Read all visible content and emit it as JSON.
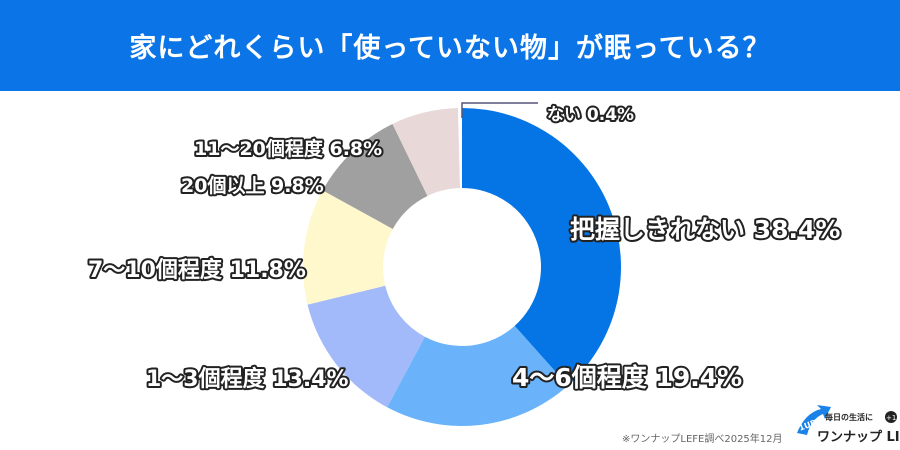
{
  "header": {
    "title": "家にどれくらい「使っていない物」が眠っている？"
  },
  "chart_data": {
    "type": "pie",
    "donut": true,
    "title": "家にどれくらい「使っていない物」が眠っている？",
    "categories": [
      "把握しきれない",
      "4〜6個程度",
      "1〜3個程度",
      "7〜10個程度",
      "20個以上",
      "11〜20個程度",
      "ない"
    ],
    "values": [
      38.4,
      19.4,
      13.4,
      11.8,
      9.8,
      6.8,
      0.4
    ],
    "labels": [
      "把握しきれない 38.4%",
      "4〜6個程度  19.4%",
      "1〜3個程度 13.4%",
      "7〜10個程度 11.8%",
      "20個以上 9.8%",
      "11〜20個程度 6.8%",
      "ない 0.4%"
    ],
    "colors": [
      "#0575e6",
      "#6ab3fb",
      "#a2baf9",
      "#fff8cc",
      "#a0a0a0",
      "#e8d8d8",
      "#e8d8d8"
    ],
    "start": "12 o'clock, clockwise"
  },
  "footer": {
    "note": "※ワンナップLEFE調べ2025年12月",
    "logo_text": "ワンナップ LIFE",
    "logo_tagline": "毎日の生活に",
    "logo_badge": "+1",
    "logo_arrow": "1UP"
  }
}
